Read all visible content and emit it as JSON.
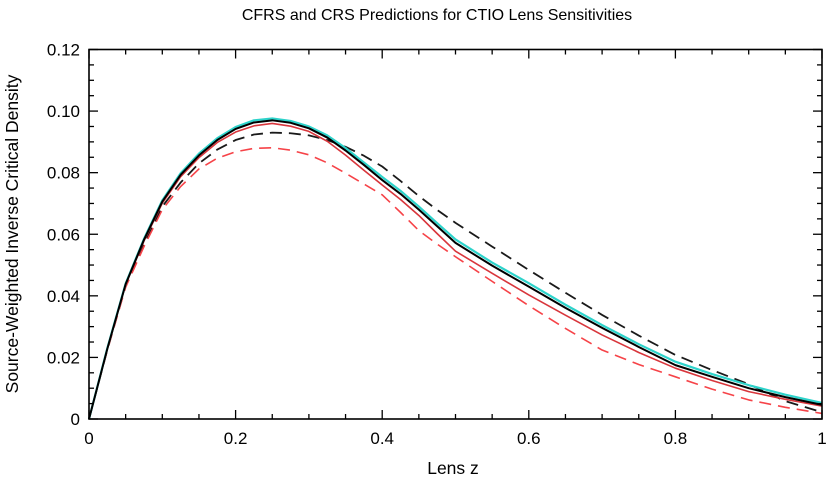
{
  "figure": {
    "title": "CFRS and CRS Predictions for CTIO Lens Sensitivities",
    "xlabel": "Lens z",
    "ylabel": "Source-Weighted Inverse Critical Density"
  },
  "chart_data": {
    "type": "line",
    "title": "CFRS and CRS Predictions for CTIO Lens Sensitivities",
    "xlabel": "Lens z",
    "ylabel": "Source-Weighted Inverse Critical Density",
    "xlim": [
      0,
      1
    ],
    "ylim": [
      0,
      0.12
    ],
    "grid": false,
    "legend_position": "none",
    "frame_color": "#000000",
    "background_color": "#ffffff",
    "x_major_ticks": [
      0,
      0.2,
      0.4,
      0.6,
      0.8,
      1
    ],
    "x_tick_labels": [
      "0",
      "0.2",
      "0.4",
      "0.6",
      "0.8",
      "1"
    ],
    "x_minor_step": 0.05,
    "y_major_ticks": [
      0,
      0.02,
      0.04,
      0.06,
      0.08,
      0.1,
      0.12
    ],
    "y_tick_labels": [
      "0",
      "0.02",
      "0.04",
      "0.06",
      "0.08",
      "0.10",
      "0.12"
    ],
    "y_minor_step": 0.005,
    "x": [
      0,
      0.025,
      0.05,
      0.075,
      0.1,
      0.125,
      0.15,
      0.175,
      0.2,
      0.225,
      0.25,
      0.275,
      0.3,
      0.325,
      0.35,
      0.375,
      0.4,
      0.425,
      0.45,
      0.475,
      0.5,
      0.55,
      0.6,
      0.65,
      0.7,
      0.75,
      0.8,
      0.85,
      0.9,
      0.95,
      1.0
    ],
    "series": [
      {
        "name": "black-dashed",
        "color": "#1a1a1a",
        "style": "dashed",
        "width": 1.8,
        "peak": {
          "z": 0.25,
          "value": 0.093
        },
        "values": [
          0,
          0.0225,
          0.0432,
          0.0568,
          0.069,
          0.0768,
          0.083,
          0.0875,
          0.0906,
          0.0924,
          0.093,
          0.0928,
          0.0921,
          0.0906,
          0.0884,
          0.0855,
          0.082,
          0.0773,
          0.0724,
          0.0679,
          0.0637,
          0.056,
          0.0484,
          0.041,
          0.0338,
          0.0271,
          0.0208,
          0.0159,
          0.0113,
          0.0058,
          0.0022
        ]
      },
      {
        "name": "red-dashed",
        "color": "#f64348",
        "style": "dashed",
        "width": 1.6,
        "peak": {
          "z": 0.235,
          "value": 0.088
        },
        "values": [
          0,
          0.0223,
          0.0428,
          0.056,
          0.068,
          0.0755,
          0.0812,
          0.0847,
          0.0868,
          0.0879,
          0.0881,
          0.0873,
          0.0858,
          0.0832,
          0.0798,
          0.0763,
          0.0728,
          0.0671,
          0.0612,
          0.0568,
          0.0527,
          0.0447,
          0.0368,
          0.0294,
          0.0224,
          0.0177,
          0.0137,
          0.0097,
          0.0062,
          0.0038,
          0.0018
        ]
      },
      {
        "name": "red-solid",
        "color": "#d8363c",
        "style": "solid",
        "width": 1.6,
        "peak": {
          "z": 0.24,
          "value": 0.096
        },
        "values": [
          0,
          0.0227,
          0.0436,
          0.0578,
          0.0701,
          0.0787,
          0.0849,
          0.0898,
          0.0932,
          0.0952,
          0.096,
          0.0951,
          0.0934,
          0.0902,
          0.0857,
          0.0808,
          0.076,
          0.0713,
          0.0661,
          0.0602,
          0.0545,
          0.0473,
          0.0403,
          0.0337,
          0.0273,
          0.0216,
          0.0165,
          0.0125,
          0.0089,
          0.0064,
          0.0042
        ]
      },
      {
        "name": "cyan-solid",
        "color": "#2ed3cb",
        "style": "solid",
        "width": 2.2,
        "peak": {
          "z": 0.24,
          "value": 0.0976
        },
        "values": [
          0,
          0.023,
          0.044,
          0.0585,
          0.071,
          0.0798,
          0.0862,
          0.0912,
          0.0948,
          0.097,
          0.0976,
          0.0968,
          0.095,
          0.0921,
          0.088,
          0.0833,
          0.0786,
          0.0741,
          0.069,
          0.0636,
          0.0583,
          0.0508,
          0.0441,
          0.0371,
          0.0305,
          0.0243,
          0.0186,
          0.0146,
          0.011,
          0.0079,
          0.0052
        ]
      },
      {
        "name": "black-solid",
        "color": "#000000",
        "style": "solid",
        "width": 2.0,
        "peak": {
          "z": 0.24,
          "value": 0.097
        },
        "values": [
          0,
          0.0228,
          0.0438,
          0.0582,
          0.0706,
          0.0793,
          0.0856,
          0.0906,
          0.0942,
          0.0963,
          0.097,
          0.0962,
          0.0944,
          0.0914,
          0.0872,
          0.0825,
          0.0776,
          0.0731,
          0.068,
          0.0626,
          0.0572,
          0.0498,
          0.043,
          0.0361,
          0.0296,
          0.0234,
          0.0175,
          0.0137,
          0.01,
          0.0071,
          0.0046
        ]
      }
    ]
  }
}
